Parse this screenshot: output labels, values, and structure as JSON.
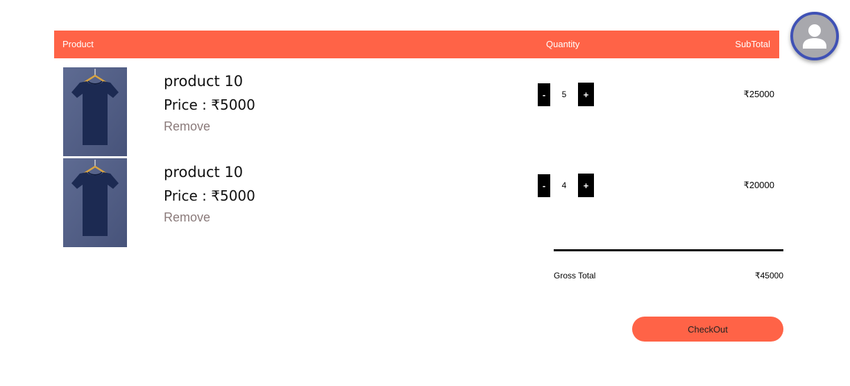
{
  "header": {
    "product_label": "Product",
    "quantity_label": "Quantity",
    "subtotal_label": "SubTotal"
  },
  "colors": {
    "accent": "#ff6347",
    "avatar_ring": "#3f51b5",
    "shirt": "#1c2a52"
  },
  "items": [
    {
      "name": "product 10",
      "price": "Price : ₹5000",
      "remove_label": "Remove",
      "qty_minus": "-",
      "quantity": "5",
      "qty_plus": "+",
      "subtotal": "₹25000"
    },
    {
      "name": "product 10",
      "price": "Price : ₹5000",
      "remove_label": "Remove",
      "qty_minus": "-",
      "quantity": "4",
      "qty_plus": "+",
      "subtotal": "₹20000"
    }
  ],
  "totals": {
    "gross_label": "Gross Total",
    "gross_value": "₹45000"
  },
  "checkout_label": "CheckOut",
  "icons": {
    "avatar": "user-avatar-icon",
    "product_image": "tshirt-on-hanger"
  }
}
